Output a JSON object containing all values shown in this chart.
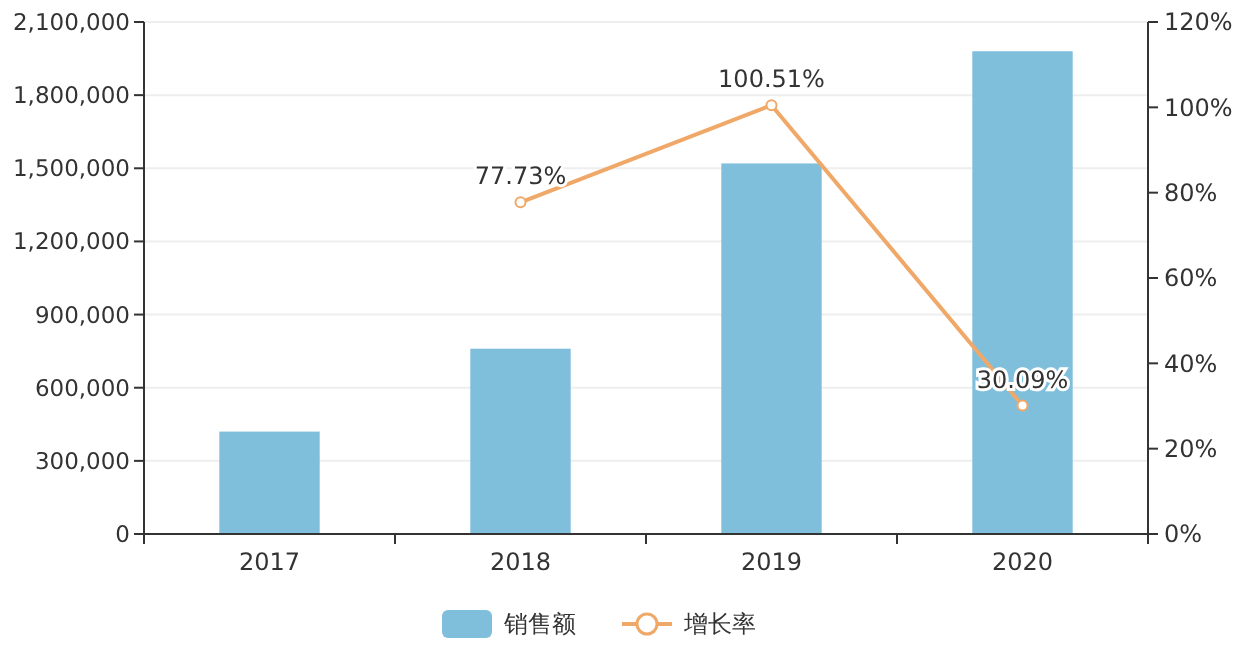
{
  "chart_data": {
    "type": "bar",
    "categories": [
      "2017",
      "2018",
      "2019",
      "2020"
    ],
    "series": [
      {
        "name": "销售额",
        "color": "#7fbfdc",
        "values": [
          420000,
          760000,
          1520000,
          1980000
        ]
      },
      {
        "name": "增长率",
        "type": "line",
        "axis": "y2",
        "color": "#f0a868",
        "values": [
          null,
          77.73,
          100.51,
          30.09
        ],
        "value_labels": [
          null,
          "77.73%",
          "100.51%",
          "30.09%"
        ],
        "marker": "circle"
      }
    ],
    "ylim": [
      0,
      2100000
    ],
    "yticks": [
      {
        "value": 0,
        "label": "0"
      },
      {
        "value": 300000,
        "label": "300,000"
      },
      {
        "value": 600000,
        "label": "600,000"
      },
      {
        "value": 900000,
        "label": "900,000"
      },
      {
        "value": 1200000,
        "label": "1,200,000"
      },
      {
        "value": 1500000,
        "label": "1,500,000"
      },
      {
        "value": 1800000,
        "label": "1,800,000"
      },
      {
        "value": 2100000,
        "label": "2,100,000"
      }
    ],
    "y2lim": [
      0,
      120
    ],
    "y2ticks": [
      {
        "value": 0,
        "label": "0%"
      },
      {
        "value": 20,
        "label": "20%"
      },
      {
        "value": 40,
        "label": "40%"
      },
      {
        "value": 60,
        "label": "60%"
      },
      {
        "value": 80,
        "label": "80%"
      },
      {
        "value": 100,
        "label": "100%"
      },
      {
        "value": 120,
        "label": "120%"
      }
    ],
    "grid": "y",
    "legend": "bottom"
  }
}
